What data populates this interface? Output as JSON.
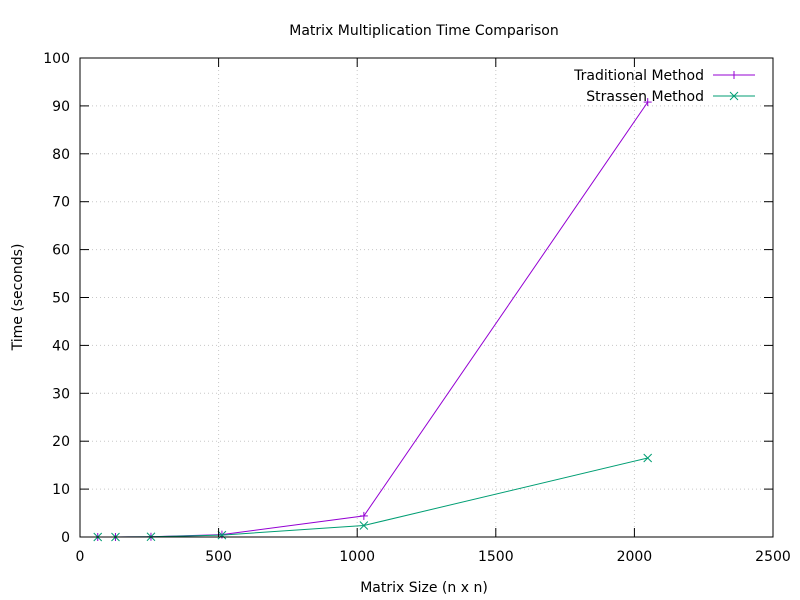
{
  "chart_data": {
    "type": "line",
    "title": "Matrix Multiplication Time Comparison",
    "xlabel": "Matrix Size (n x n)",
    "ylabel": "Time (seconds)",
    "xlim": [
      0,
      2500
    ],
    "ylim": [
      0,
      100
    ],
    "xticks": [
      0,
      500,
      1000,
      1500,
      2000,
      2500
    ],
    "yticks": [
      0,
      10,
      20,
      30,
      40,
      50,
      60,
      70,
      80,
      90,
      100
    ],
    "grid": true,
    "legend_position": "top-right",
    "series": [
      {
        "name": "Traditional Method",
        "color": "#9400d3",
        "marker": "plus",
        "x": [
          64,
          128,
          256,
          512,
          1024,
          2048
        ],
        "y": [
          0.0,
          0.0,
          0.05,
          0.5,
          4.4,
          90.8
        ]
      },
      {
        "name": "Strassen Method",
        "color": "#009e73",
        "marker": "cross",
        "x": [
          64,
          128,
          256,
          512,
          1024,
          2048
        ],
        "y": [
          0.0,
          0.0,
          0.05,
          0.4,
          2.4,
          16.5
        ]
      }
    ]
  }
}
